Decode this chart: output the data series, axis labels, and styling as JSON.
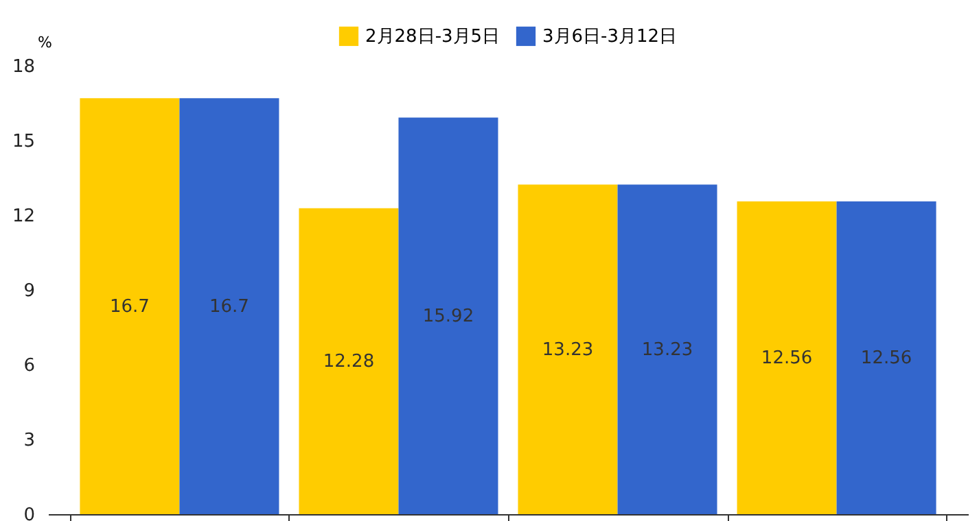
{
  "chart_data": {
    "type": "bar",
    "ylabel": "%",
    "categories": [
      null,
      null,
      null,
      null
    ],
    "series": [
      {
        "name": "2月28日-3月5日",
        "color": "#ffcc00",
        "values": [
          16.7,
          12.28,
          13.23,
          12.56
        ]
      },
      {
        "name": "3月6日-3月12日",
        "color": "#3366cc",
        "values": [
          16.7,
          15.92,
          13.23,
          12.56
        ]
      }
    ],
    "ylim": [
      0,
      18
    ],
    "yticks": [
      0,
      3,
      6,
      9,
      12,
      15,
      18
    ],
    "grid": false,
    "legend": "top",
    "data_labels": true
  }
}
